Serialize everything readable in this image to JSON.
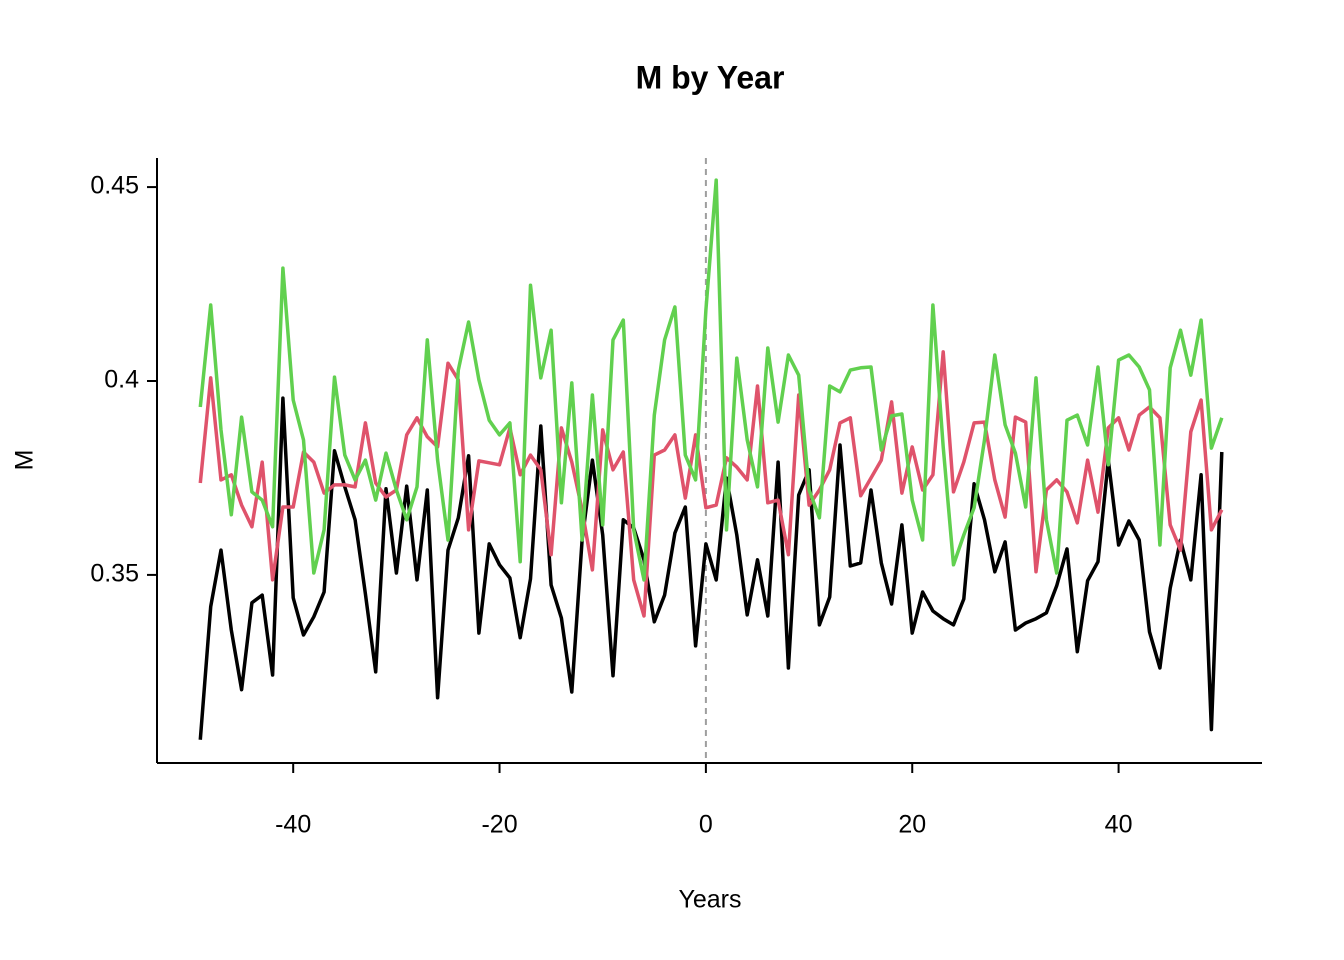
{
  "chart_data": {
    "type": "line",
    "title": "M by Year",
    "x_label": "Years",
    "y_label": "M",
    "x": [
      -49,
      -48,
      -47,
      -46,
      -45,
      -44,
      -43,
      -42,
      -41,
      -40,
      -39,
      -38,
      -37,
      -36,
      -35,
      -34,
      -33,
      -32,
      -31,
      -30,
      -29,
      -28,
      -27,
      -26,
      -25,
      -24,
      -23,
      -22,
      -21,
      -20,
      -19,
      -18,
      -17,
      -16,
      -15,
      -14,
      -13,
      -12,
      -11,
      -10,
      -9,
      -8,
      -7,
      -6,
      -5,
      -4,
      -3,
      -2,
      -1,
      0,
      1,
      2,
      3,
      4,
      5,
      6,
      7,
      8,
      9,
      10,
      11,
      12,
      13,
      14,
      15,
      16,
      17,
      18,
      19,
      20,
      21,
      22,
      23,
      24,
      25,
      26,
      27,
      28,
      29,
      30,
      31,
      32,
      33,
      34,
      35,
      36,
      37,
      38,
      39,
      40,
      41,
      42,
      43,
      44,
      45,
      46,
      47,
      48,
      49,
      50
    ],
    "series": [
      {
        "color": "#000000",
        "values": [
          0.3075,
          0.3418,
          0.3564,
          0.3358,
          0.3204,
          0.3428,
          0.3448,
          0.3242,
          0.3956,
          0.3441,
          0.3345,
          0.3392,
          0.3456,
          0.382,
          0.3727,
          0.3642,
          0.3451,
          0.325,
          0.3722,
          0.3505,
          0.3729,
          0.3487,
          0.3719,
          0.3183,
          0.3564,
          0.3647,
          0.3807,
          0.335,
          0.358,
          0.3526,
          0.3492,
          0.3338,
          0.349,
          0.3884,
          0.3474,
          0.3389,
          0.3198,
          0.359,
          0.3796,
          0.3603,
          0.324,
          0.3642,
          0.3621,
          0.3539,
          0.3379,
          0.3448,
          0.3608,
          0.3675,
          0.3317,
          0.358,
          0.3487,
          0.375,
          0.3603,
          0.3397,
          0.3539,
          0.3394,
          0.3791,
          0.326,
          0.3706,
          0.3771,
          0.3371,
          0.3443,
          0.3835,
          0.3523,
          0.3531,
          0.3719,
          0.3531,
          0.3425,
          0.3629,
          0.335,
          0.3456,
          0.3407,
          0.3387,
          0.3371,
          0.3438,
          0.3735,
          0.3642,
          0.3508,
          0.3585,
          0.3358,
          0.3376,
          0.3387,
          0.3402,
          0.3472,
          0.3567,
          0.3302,
          0.3485,
          0.3534,
          0.3796,
          0.3577,
          0.3639,
          0.359,
          0.3353,
          0.326,
          0.3466,
          0.359,
          0.3487,
          0.3758,
          0.3101,
          0.3817
        ]
      },
      {
        "color": "#DF536B",
        "values": [
          0.3737,
          0.4008,
          0.3745,
          0.3758,
          0.368,
          0.3624,
          0.3791,
          0.3487,
          0.3675,
          0.3675,
          0.3817,
          0.3791,
          0.3711,
          0.3732,
          0.3732,
          0.3727,
          0.3892,
          0.3737,
          0.3701,
          0.3719,
          0.3861,
          0.3905,
          0.3856,
          0.383,
          0.4046,
          0.4003,
          0.3616,
          0.3794,
          0.3789,
          0.3784,
          0.3879,
          0.3758,
          0.3809,
          0.3771,
          0.3552,
          0.3879,
          0.3791,
          0.3668,
          0.3513,
          0.3874,
          0.3771,
          0.3817,
          0.3487,
          0.3394,
          0.3809,
          0.3822,
          0.3861,
          0.3698,
          0.3861,
          0.3673,
          0.368,
          0.3802,
          0.3778,
          0.3745,
          0.3987,
          0.3686,
          0.3693,
          0.3552,
          0.3964,
          0.368,
          0.3719,
          0.3771,
          0.3892,
          0.3905,
          0.3704,
          0.375,
          0.3796,
          0.3946,
          0.3711,
          0.383,
          0.3719,
          0.3758,
          0.4075,
          0.3714,
          0.3791,
          0.3892,
          0.3894,
          0.3745,
          0.3649,
          0.3907,
          0.3894,
          0.3508,
          0.3719,
          0.3745,
          0.3714,
          0.3634,
          0.3796,
          0.3662,
          0.3879,
          0.3905,
          0.3822,
          0.3912,
          0.3933,
          0.3905,
          0.3629,
          0.3564,
          0.3869,
          0.3951,
          0.3616,
          0.3668
        ]
      },
      {
        "color": "#61D04F",
        "values": [
          0.3933,
          0.4196,
          0.3874,
          0.3655,
          0.3907,
          0.3714,
          0.3693,
          0.3624,
          0.4291,
          0.3951,
          0.3848,
          0.3505,
          0.3616,
          0.401,
          0.3809,
          0.3745,
          0.3796,
          0.3693,
          0.3814,
          0.3719,
          0.3642,
          0.3727,
          0.4106,
          0.3796,
          0.359,
          0.4028,
          0.4152,
          0.4003,
          0.3899,
          0.3861,
          0.3892,
          0.3534,
          0.4247,
          0.4008,
          0.4131,
          0.3686,
          0.3995,
          0.359,
          0.3964,
          0.3629,
          0.4106,
          0.4157,
          0.3616,
          0.3487,
          0.3912,
          0.4106,
          0.4191,
          0.3809,
          0.3745,
          0.4183,
          0.4518,
          0.3616,
          0.4059,
          0.3848,
          0.3727,
          0.4085,
          0.3894,
          0.4067,
          0.4015,
          0.3719,
          0.3647,
          0.3987,
          0.3972,
          0.4028,
          0.4034,
          0.4036,
          0.3822,
          0.391,
          0.3915,
          0.3693,
          0.359,
          0.4196,
          0.383,
          0.3526,
          0.3603,
          0.3673,
          0.3848,
          0.4067,
          0.3887,
          0.3814,
          0.3675,
          0.4008,
          0.3642,
          0.3505,
          0.3899,
          0.3912,
          0.3835,
          0.4036,
          0.3784,
          0.4054,
          0.4067,
          0.4036,
          0.3977,
          0.3577,
          0.4034,
          0.4131,
          0.4015,
          0.4157,
          0.3827,
          0.3905
        ]
      }
    ],
    "xlim": [
      -53.2,
      53.9
    ],
    "xticks": [
      -40,
      -20,
      0,
      20,
      40
    ],
    "ylim": [
      0.3015,
      0.4575
    ],
    "yticks": [
      0.35,
      0.4,
      0.45
    ],
    "vline": 0,
    "vline_color": "#9e9e9e"
  }
}
